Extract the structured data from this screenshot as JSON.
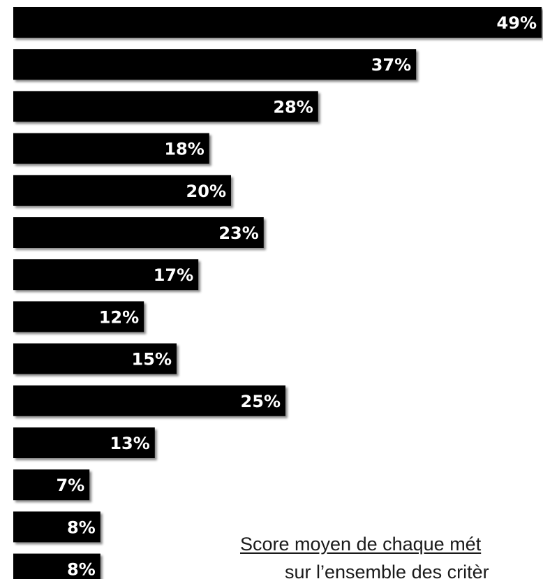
{
  "chart_data": {
    "type": "bar",
    "orientation": "horizontal",
    "values": [
      49,
      37,
      28,
      18,
      20,
      23,
      17,
      12,
      15,
      25,
      13,
      7,
      8,
      8
    ],
    "labels": [
      "49%",
      "37%",
      "28%",
      "18%",
      "20%",
      "23%",
      "17%",
      "12%",
      "15%",
      "25%",
      "13%",
      "7%",
      "8%",
      "8%"
    ],
    "unit": "%",
    "xlim": [
      0,
      50
    ],
    "grid": false,
    "legend": "none",
    "bar_color": "#000000",
    "label_color": "#ffffff",
    "caption_lines": [
      "Score moyen de chaque mét",
      "sur l’ensemble des critèr"
    ]
  }
}
